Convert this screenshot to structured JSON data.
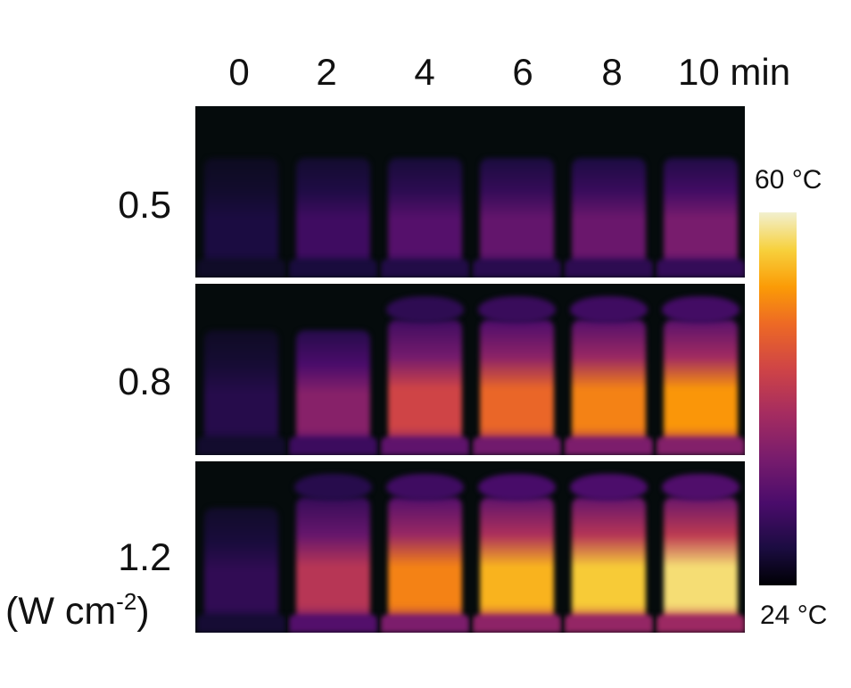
{
  "time_labels": [
    "0",
    "2",
    "4",
    "6",
    "8",
    "10 min"
  ],
  "power_labels": [
    "0.5",
    "0.8",
    "1.2"
  ],
  "unit_label": {
    "prefix": "(W cm",
    "exponent": "-2",
    "suffix": ")"
  },
  "colorbar": {
    "max_label": "60 °C",
    "min_label": "24 °C",
    "colormap": "inferno"
  },
  "heat_levels": [
    [
      0.12,
      0.22,
      0.28,
      0.32,
      0.34,
      0.38
    ],
    [
      0.15,
      0.42,
      0.62,
      0.72,
      0.78,
      0.82
    ],
    [
      0.18,
      0.55,
      0.78,
      0.87,
      0.91,
      0.95
    ]
  ]
}
